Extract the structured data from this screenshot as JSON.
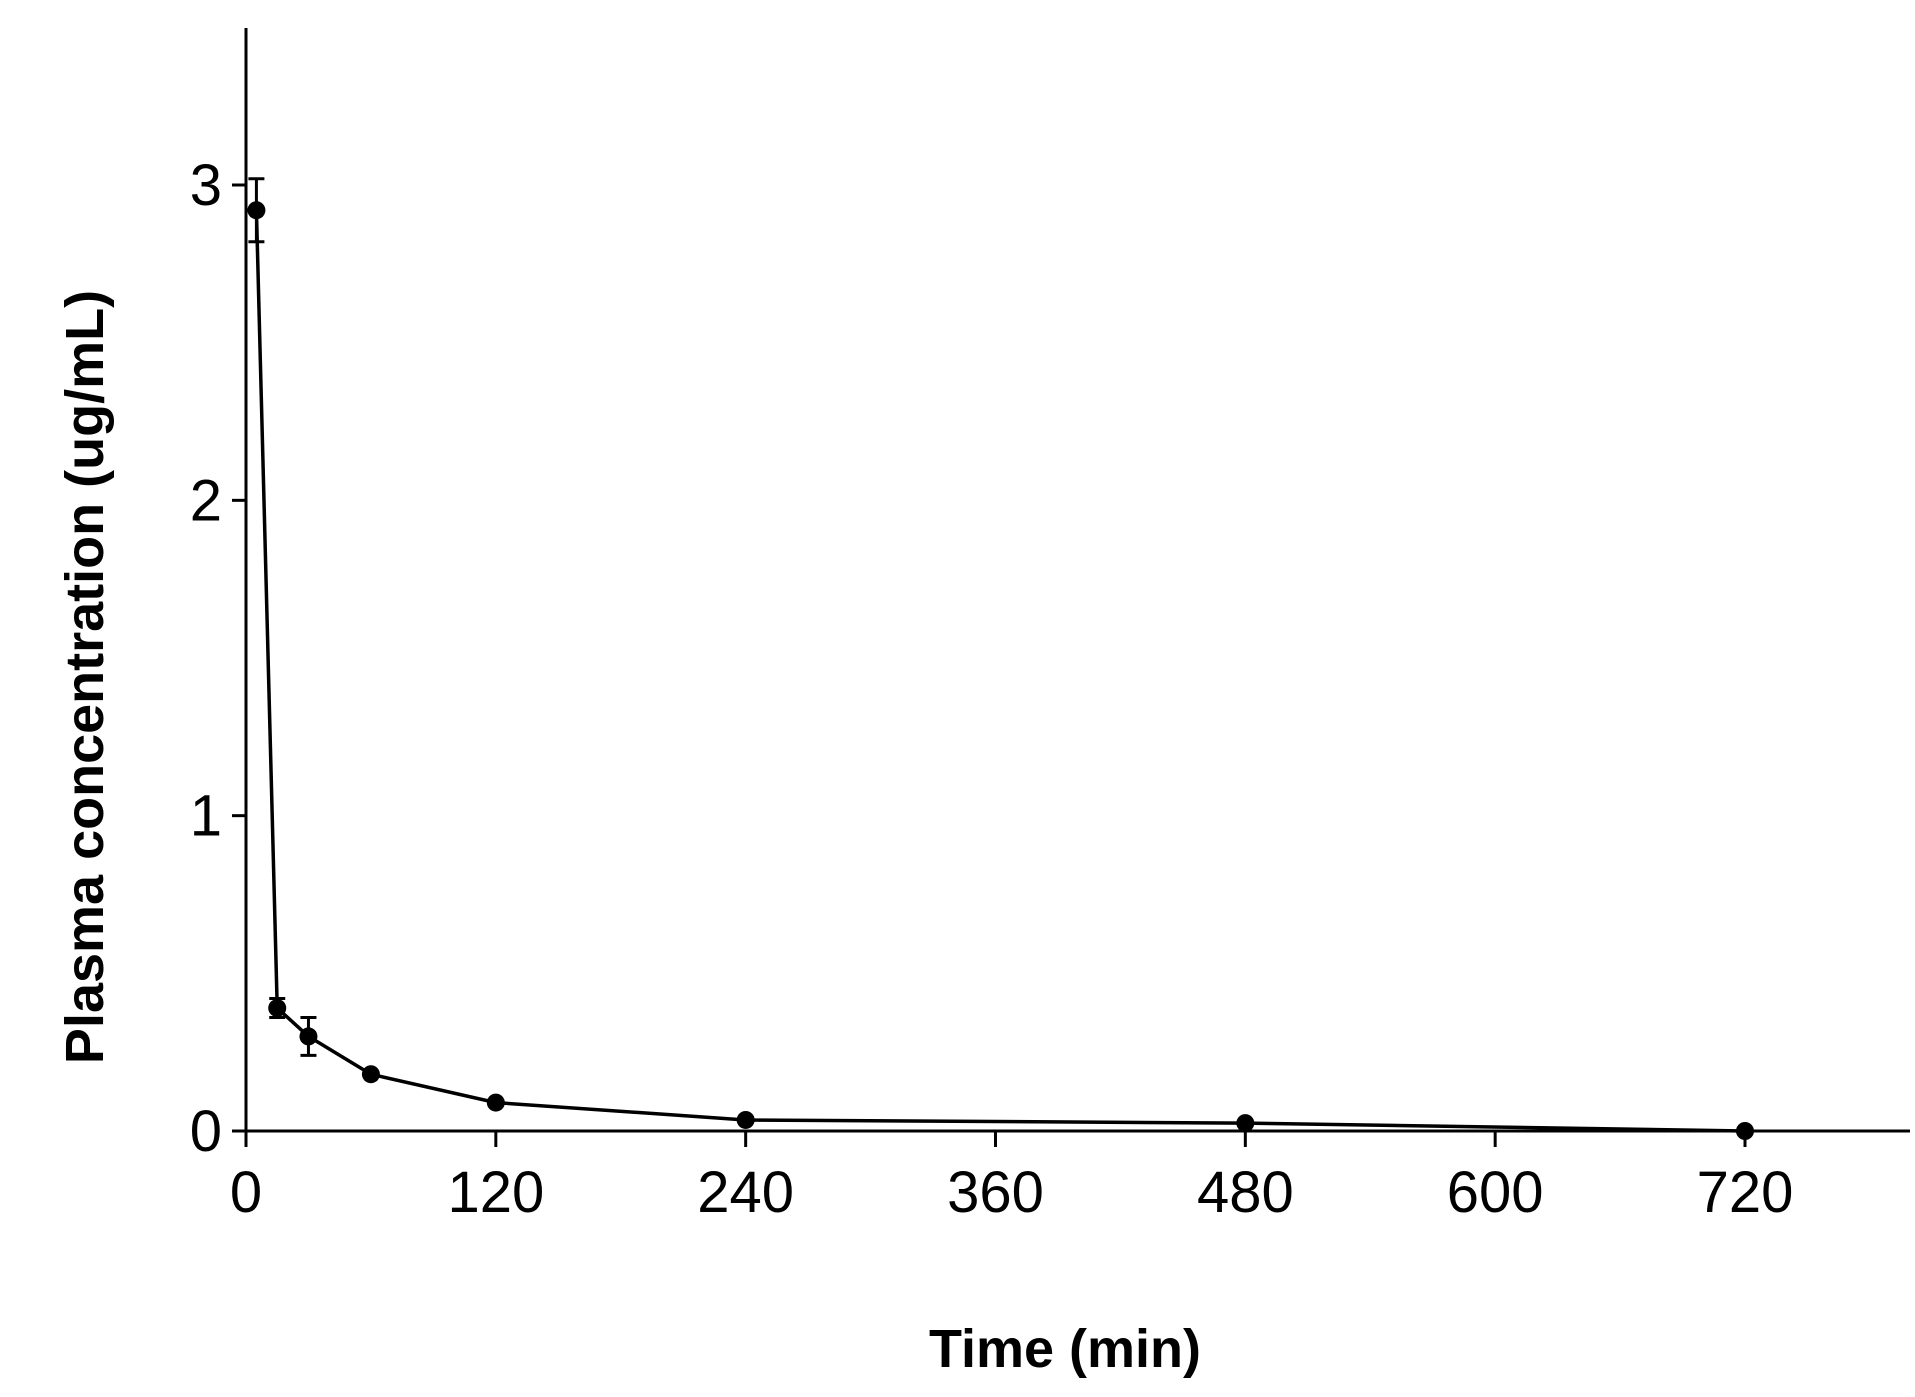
{
  "chart_data": {
    "type": "line",
    "title": "",
    "xlabel": "Time (min)",
    "ylabel": "Plasma concentration (ug/mL)",
    "xlim": [
      0,
      780
    ],
    "ylim": [
      0,
      3.5
    ],
    "xticks": [
      0,
      120,
      240,
      360,
      480,
      600,
      720
    ],
    "yticks": [
      0,
      1,
      2,
      3
    ],
    "grid": false,
    "legend": "none",
    "colors": {
      "line": "#000000",
      "marker": "#000000",
      "axis": "#000000"
    },
    "series": [
      {
        "x": [
          5,
          15,
          30,
          60,
          120,
          240,
          480,
          720
        ],
        "y": [
          2.92,
          0.39,
          0.3,
          0.18,
          0.09,
          0.035,
          0.025,
          0.0
        ],
        "error": [
          0.1,
          0.03,
          0.06,
          0.015,
          0.01,
          0.005,
          0.005,
          0.005
        ]
      }
    ]
  }
}
